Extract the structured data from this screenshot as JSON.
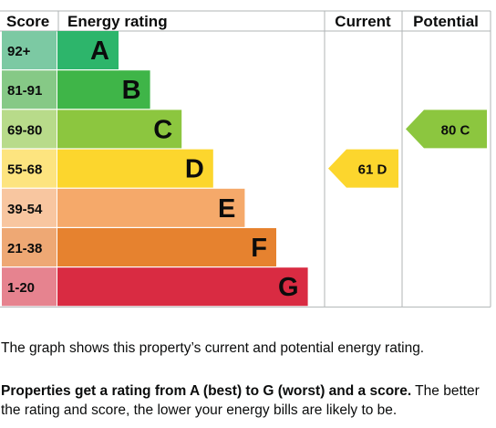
{
  "chart_data": {
    "type": "bar",
    "headers": {
      "score": "Score",
      "rating": "Energy rating",
      "current": "Current",
      "potential": "Potential"
    },
    "bands": [
      {
        "letter": "A",
        "range": "92+",
        "color": "#2db56b",
        "score_color": "#7cc9a3"
      },
      {
        "letter": "B",
        "range": "81-91",
        "color": "#3fb548",
        "score_color": "#86c986"
      },
      {
        "letter": "C",
        "range": "69-80",
        "color": "#8cc63f",
        "score_color": "#b8db8a"
      },
      {
        "letter": "D",
        "range": "55-68",
        "color": "#fcd62d",
        "score_color": "#fde47f"
      },
      {
        "letter": "E",
        "range": "39-54",
        "color": "#f5a96a",
        "score_color": "#f8c6a0"
      },
      {
        "letter": "F",
        "range": "21-38",
        "color": "#e6822f",
        "score_color": "#eea874"
      },
      {
        "letter": "G",
        "range": "1-20",
        "color": "#d92b42",
        "score_color": "#e6838f"
      }
    ],
    "current": {
      "value": 61,
      "letter": "D",
      "label": "61 D",
      "color": "#fcd62d"
    },
    "potential": {
      "value": 80,
      "letter": "C",
      "label": "80 C",
      "color": "#8cc63f"
    }
  },
  "caption": "The graph shows this property’s current and potential energy rating.",
  "note": {
    "bold": "Properties get a rating from A (best) to G (worst) and a score.",
    "rest": " The better the rating and score, the lower your energy bills are likely to be."
  }
}
